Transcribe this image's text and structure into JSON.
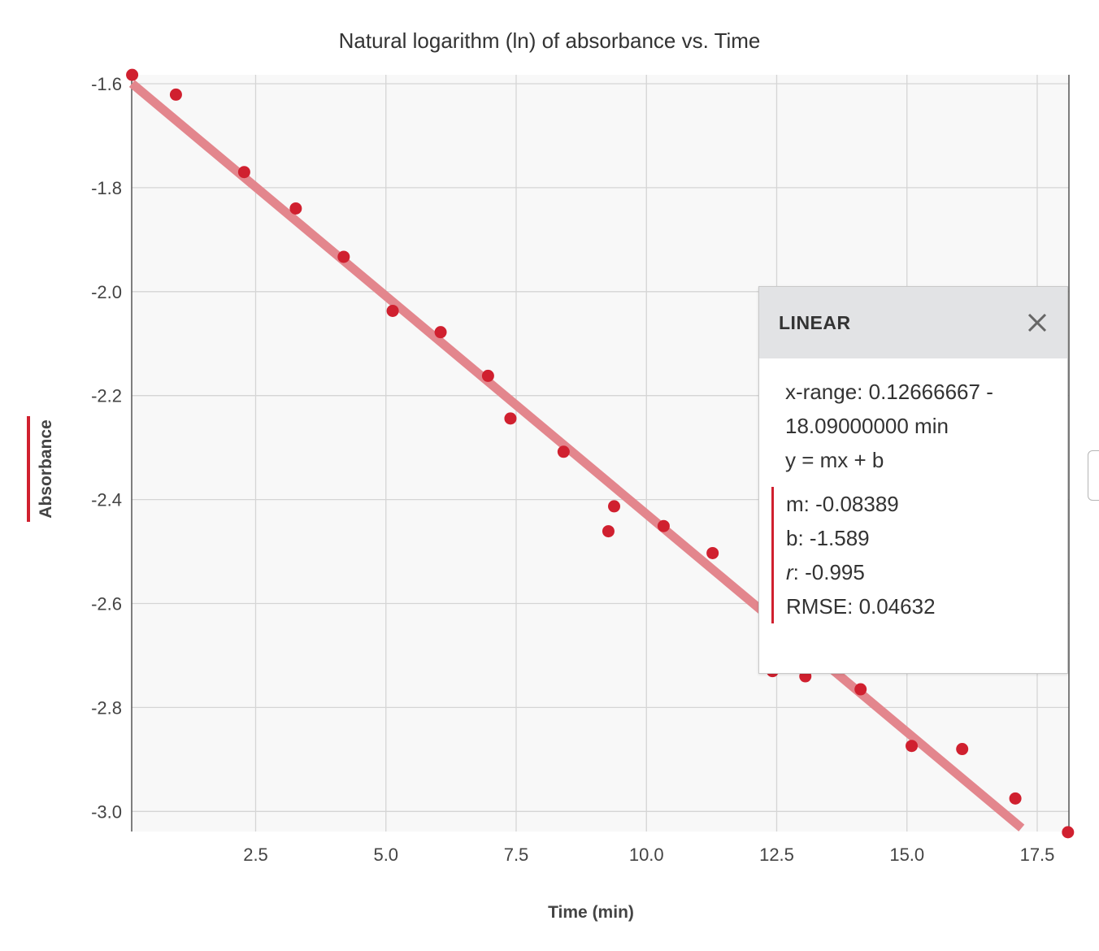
{
  "chart_data": {
    "type": "scatter",
    "title": "Natural logarithm (ln) of absorbance vs. Time",
    "xlabel": "Time (min)",
    "ylabel": "Absorbance",
    "xlim": [
      0.12666667,
      18.09
    ],
    "ylim": [
      -3.04,
      -1.58
    ],
    "x_ticks": [
      "2.5",
      "5.0",
      "7.5",
      "10.0",
      "12.5",
      "15.0",
      "17.5"
    ],
    "x_tick_values": [
      2.5,
      5.0,
      7.5,
      10.0,
      12.5,
      15.0,
      17.5
    ],
    "y_ticks": [
      "-1.6",
      "-1.8",
      "-2.0",
      "-2.2",
      "-2.4",
      "-2.6",
      "-2.8",
      "-3.0"
    ],
    "y_tick_values": [
      -1.6,
      -1.8,
      -2.0,
      -2.2,
      -2.4,
      -2.6,
      -2.8,
      -3.0
    ],
    "grid": true,
    "point_color": "#d0202f",
    "fit_line_color": "#e3868d",
    "series": [
      {
        "x": [
          0.13,
          0.97,
          2.28,
          3.27,
          4.19,
          5.13,
          6.05,
          6.96,
          7.39,
          8.41,
          9.27,
          9.38,
          10.33,
          11.27,
          12.42,
          13.05,
          14.11,
          15.09,
          16.06,
          17.08,
          18.09
        ],
        "y": [
          -1.583,
          -1.621,
          -1.77,
          -1.84,
          -1.933,
          -2.037,
          -2.078,
          -2.162,
          -2.244,
          -2.308,
          -2.461,
          -2.413,
          -2.451,
          -2.503,
          -2.73,
          -2.74,
          -2.765,
          -2.874,
          -2.88,
          -2.975,
          -3.04
        ]
      }
    ],
    "fit": {
      "m": -0.08389,
      "b": -1.589,
      "x_end": 17.2
    }
  },
  "panel": {
    "title": "LINEAR",
    "close_icon": "close-icon",
    "xrange_line1": "x-range: 0.12666667 -",
    "xrange_line2": "18.09000000 min",
    "equation": "y = mx + b",
    "m_text": "m: -0.08389",
    "b_text": "b: -1.589",
    "r_label": "r",
    "r_value": ": -0.995",
    "rmse_text": "RMSE: 0.04632"
  }
}
